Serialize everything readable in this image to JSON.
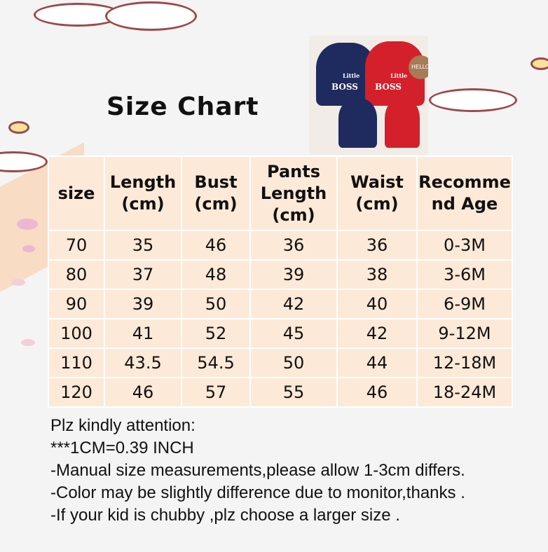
{
  "title": "Size Chart",
  "photo": {
    "left_logo": "BOSS",
    "right_logo": "BOSS",
    "left_small": "Little",
    "right_small": "Little",
    "sign": "HELLO"
  },
  "table": {
    "headers": [
      "size",
      "Length (cm)",
      "Bust (cm)",
      "Pants Length (cm)",
      "Waist (cm)",
      "Recomme nd Age"
    ],
    "rows": [
      [
        "70",
        "35",
        "46",
        "36",
        "36",
        "0-3M"
      ],
      [
        "80",
        "37",
        "48",
        "39",
        "38",
        "3-6M"
      ],
      [
        "90",
        "39",
        "50",
        "42",
        "40",
        "6-9M"
      ],
      [
        "100",
        "41",
        "52",
        "45",
        "42",
        "9-12M"
      ],
      [
        "110",
        "43.5",
        "54.5",
        "50",
        "44",
        "12-18M"
      ],
      [
        "120",
        "46",
        "57",
        "55",
        "46",
        "18-24M"
      ]
    ]
  },
  "notes": [
    " Plz kindly attention:",
    "***1CM=0.39 INCH",
    "-Manual size measurements,please allow 1-3cm differs.",
    "-Color may be slightly difference due to monitor,thanks .",
    "-If your kid is chubby ,plz choose a larger size ."
  ]
}
